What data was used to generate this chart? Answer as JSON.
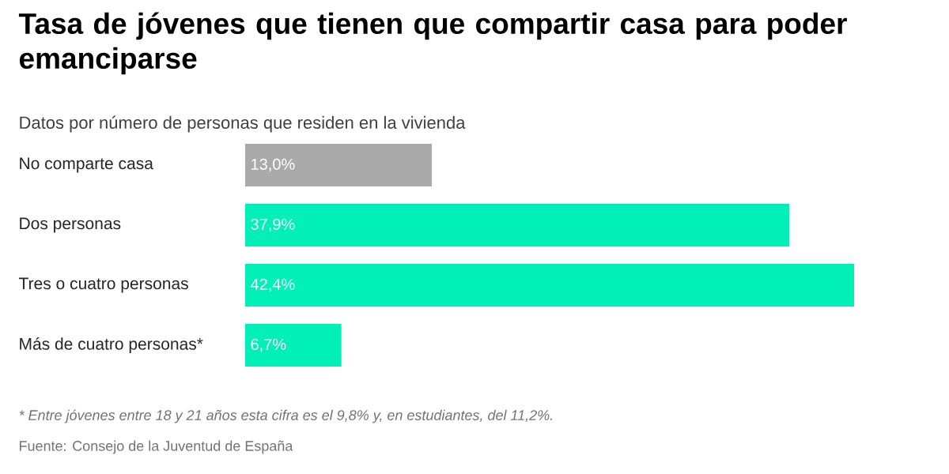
{
  "chart_data": {
    "type": "bar",
    "orientation": "horizontal",
    "title": "Tasa de jóvenes que tienen que compartir casa para poder emanciparse",
    "subtitle": "Datos por número de personas que residen en la vivienda",
    "categories": [
      "No comparte casa",
      "Dos personas",
      "Tres o cuatro personas",
      "Más de cuatro personas*"
    ],
    "values": [
      13.0,
      37.9,
      42.4,
      6.7
    ],
    "colors": [
      "#aaaaaa",
      "#00f0b8",
      "#00f0b8",
      "#00f0b8"
    ],
    "value_labels": [
      "13,0%",
      "37,9%",
      "42,4%",
      "6,7%"
    ],
    "tick_labels": "y",
    "annotations": [
      "* Entre jóvenes entre 18 y 21 años esta cifra es el 9,8% y, en estudiantes, del 11,2%.",
      "Fuente: Consejo de la Juventud de España"
    ]
  }
}
